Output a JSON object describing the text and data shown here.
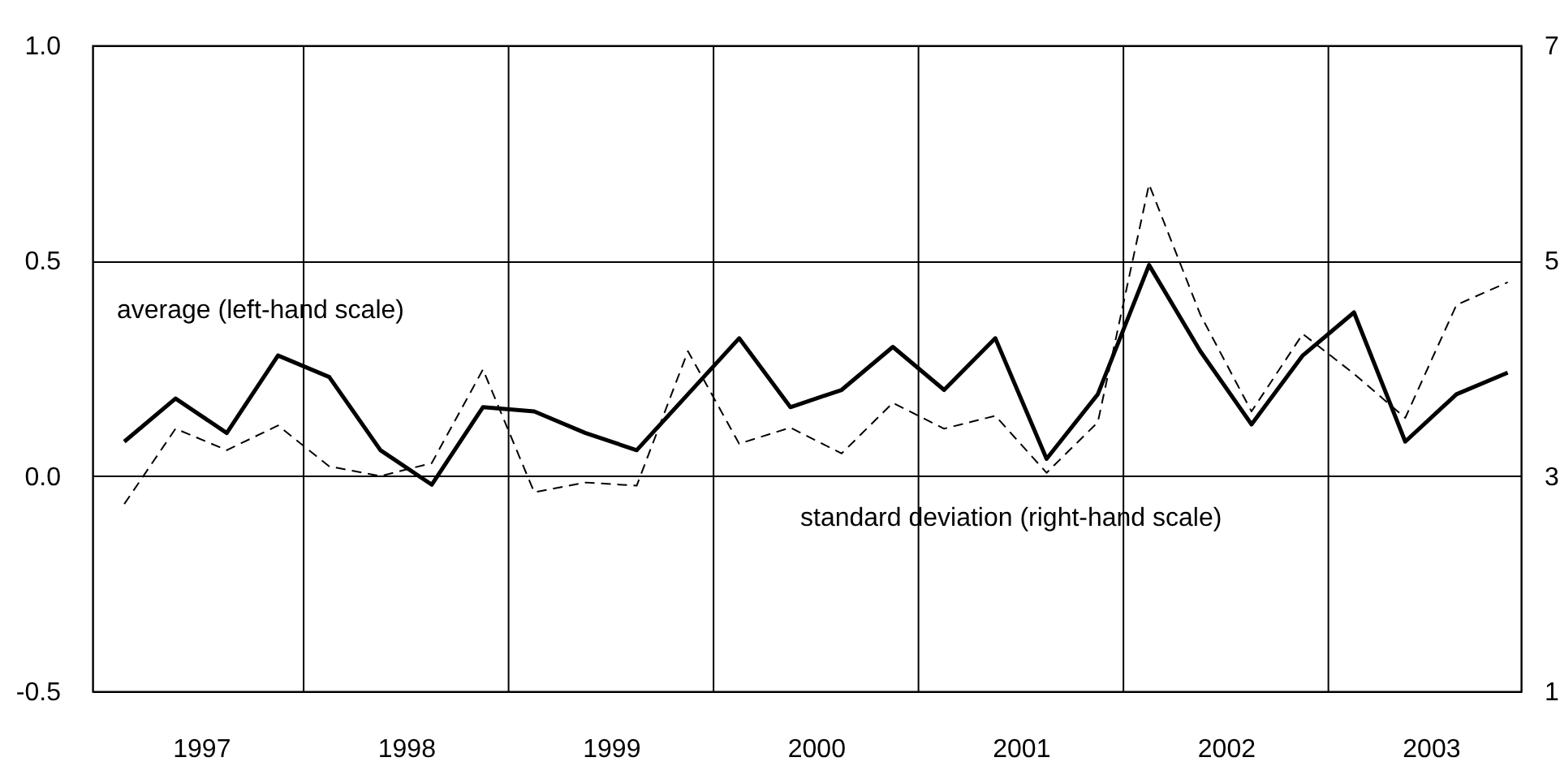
{
  "chart_data": {
    "type": "line",
    "x": [
      1997.125,
      1997.375,
      1997.625,
      1997.875,
      1998.125,
      1998.375,
      1998.625,
      1998.875,
      1999.125,
      1999.375,
      1999.625,
      1999.875,
      2000.125,
      2000.375,
      2000.625,
      2000.875,
      2001.125,
      2001.375,
      2001.625,
      2001.875,
      2002.125,
      2002.375,
      2002.625,
      2002.875,
      2003.125,
      2003.375,
      2003.625,
      2003.875
    ],
    "series": [
      {
        "name": "average (left-hand scale)",
        "color": "#000000",
        "line_style": "solid",
        "values": [
          0.08,
          0.18,
          0.1,
          0.28,
          0.23,
          0.06,
          -0.02,
          0.16,
          0.15,
          0.1,
          0.06,
          0.19,
          0.32,
          0.16,
          0.2,
          0.3,
          0.2,
          0.32,
          0.04,
          0.19,
          0.49,
          0.29,
          0.12,
          0.28,
          0.38,
          0.08,
          0.19,
          0.24
        ]
      },
      {
        "name": "standard deviation (right-hand scale)",
        "color": "#000000",
        "line_style": "dashed",
        "axis": "y2",
        "values": [
          2.74,
          3.44,
          3.24,
          3.47,
          3.09,
          3.0,
          3.12,
          3.99,
          2.85,
          2.94,
          2.91,
          4.16,
          3.3,
          3.45,
          3.21,
          3.68,
          3.44,
          3.56,
          3.03,
          3.5,
          5.71,
          4.5,
          3.6,
          4.32,
          3.95,
          3.54,
          4.59,
          4.8
        ]
      }
    ],
    "xlim": [
      1996.97,
      2003.94
    ],
    "xticks": [
      {
        "value": 1997.5,
        "label": "1997"
      },
      {
        "value": 1998,
        "label": null
      },
      {
        "value": 1998.5,
        "label": "1998"
      },
      {
        "value": 1999,
        "label": null
      },
      {
        "value": 1999.5,
        "label": "1999"
      },
      {
        "value": 2000,
        "label": null
      },
      {
        "value": 2000.5,
        "label": "2000"
      },
      {
        "value": 2001,
        "label": null
      },
      {
        "value": 2001.5,
        "label": "2001"
      },
      {
        "value": 2002,
        "label": null
      },
      {
        "value": 2002.5,
        "label": "2002"
      },
      {
        "value": 2003,
        "label": null
      },
      {
        "value": 2003.5,
        "label": "2003"
      }
    ],
    "ylim": [
      -0.5,
      1.0
    ],
    "yticks": [
      -0.5,
      {
        "value": 0,
        "label": "0.0"
      },
      0.5,
      {
        "value": 1.0,
        "label": "1.0"
      }
    ],
    "y2lim": [
      1,
      7
    ],
    "y2ticks": [
      1,
      3,
      5,
      7
    ],
    "grid": true,
    "marker": "none"
  }
}
